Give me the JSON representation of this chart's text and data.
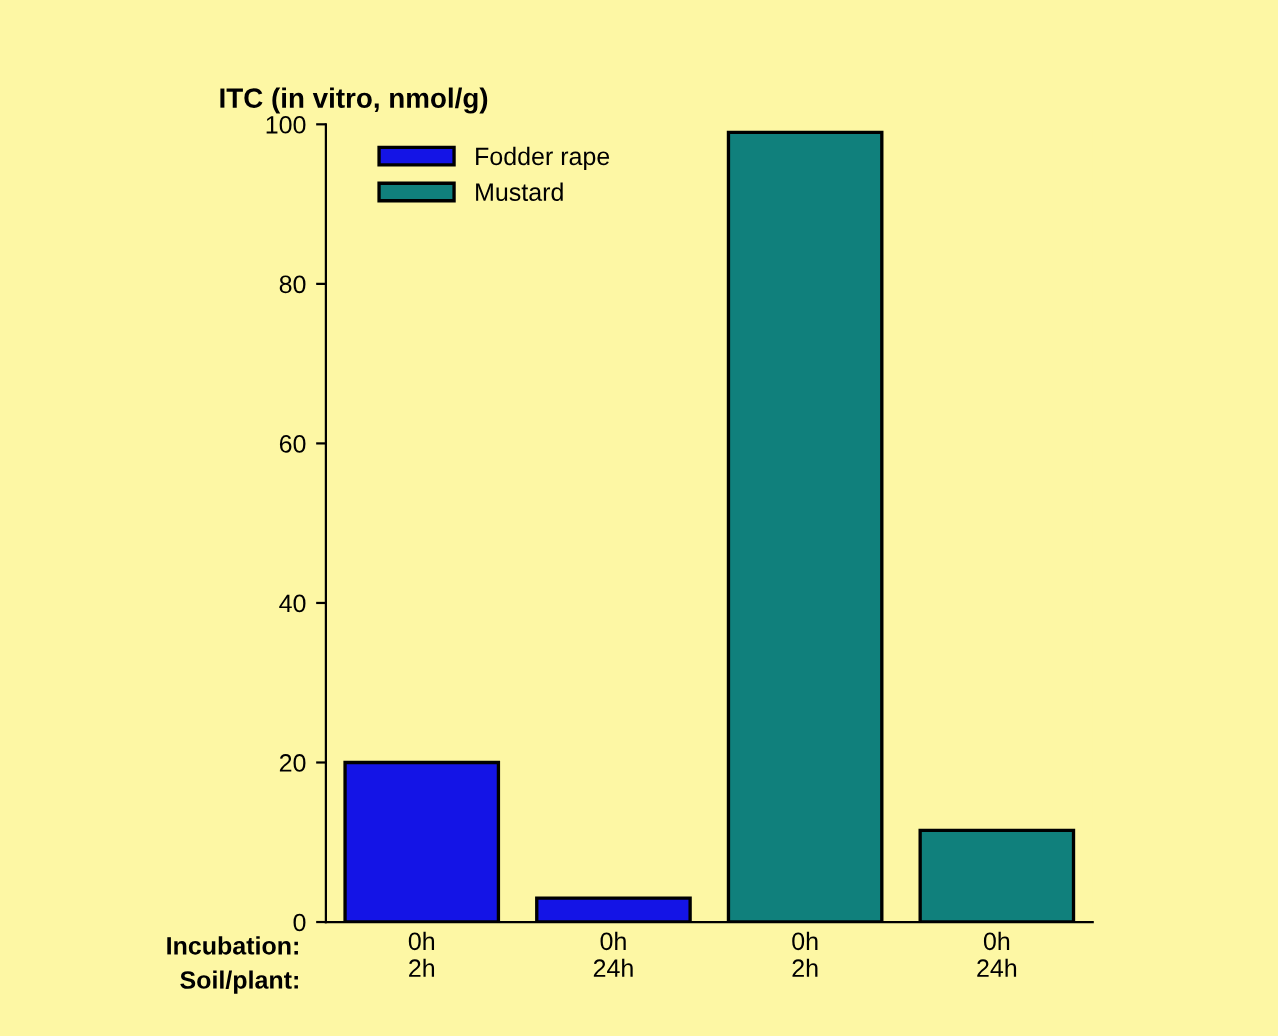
{
  "chart_data": {
    "type": "bar",
    "title": "ITC (in vitro, nmol/g)",
    "categories": [
      "0h\n2h",
      "0h\n24h",
      "0h\n2h",
      "0h\n24h"
    ],
    "series": [
      {
        "name": "Fodder rape",
        "color": "#1414e6",
        "values": [
          20,
          3,
          null,
          null
        ]
      },
      {
        "name": "Mustard",
        "color": "#10807c",
        "values": [
          null,
          null,
          99,
          11.5
        ]
      }
    ],
    "ylim": [
      0,
      100
    ],
    "yticks": [
      0,
      20,
      40,
      60,
      80,
      100
    ],
    "grid": false,
    "legend": "top left",
    "annotations": [
      "Incubation:",
      "Soil/plant:"
    ]
  }
}
